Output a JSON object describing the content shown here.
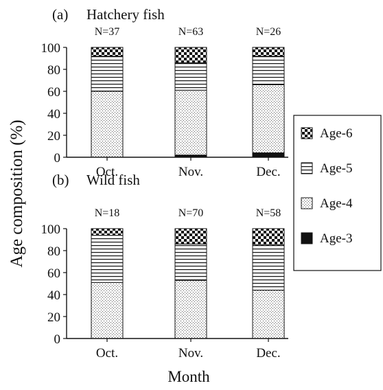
{
  "figure": {
    "ylabel": "Age composition (%)",
    "xlabel": "Month"
  },
  "legend": {
    "entries": [
      {
        "key": "age6",
        "label": "Age-6"
      },
      {
        "key": "age5",
        "label": "Age-5"
      },
      {
        "key": "age4",
        "label": "Age-4"
      },
      {
        "key": "age3",
        "label": "Age-3"
      }
    ]
  },
  "chart_data": [
    {
      "type": "bar",
      "stacked": true,
      "panel_label": "(a)",
      "title": "Hatchery fish",
      "categories": [
        "Oct.",
        "Nov.",
        "Dec."
      ],
      "sample_sizes": [
        "N=37",
        "N=63",
        "N=26"
      ],
      "ylim": [
        0,
        100
      ],
      "yticks": [
        0,
        20,
        40,
        60,
        80,
        100
      ],
      "series": [
        {
          "name": "Age-3",
          "key": "age3",
          "values": [
            0,
            2,
            4
          ]
        },
        {
          "name": "Age-4",
          "key": "age4",
          "values": [
            60,
            59,
            62
          ]
        },
        {
          "name": "Age-5",
          "key": "age5",
          "values": [
            32,
            25,
            26
          ]
        },
        {
          "name": "Age-6",
          "key": "age6",
          "values": [
            8,
            14,
            8
          ]
        }
      ]
    },
    {
      "type": "bar",
      "stacked": true,
      "panel_label": "(b)",
      "title": "Wild fish",
      "categories": [
        "Oct.",
        "Nov.",
        "Dec."
      ],
      "sample_sizes": [
        "N=18",
        "N=70",
        "N=58"
      ],
      "ylim": [
        0,
        100
      ],
      "yticks": [
        0,
        20,
        40,
        60,
        80,
        100
      ],
      "series": [
        {
          "name": "Age-3",
          "key": "age3",
          "values": [
            0,
            0,
            0
          ]
        },
        {
          "name": "Age-4",
          "key": "age4",
          "values": [
            51,
            53,
            44
          ]
        },
        {
          "name": "Age-5",
          "key": "age5",
          "values": [
            43,
            33,
            41
          ]
        },
        {
          "name": "Age-6",
          "key": "age6",
          "values": [
            6,
            14,
            15
          ]
        }
      ]
    }
  ]
}
